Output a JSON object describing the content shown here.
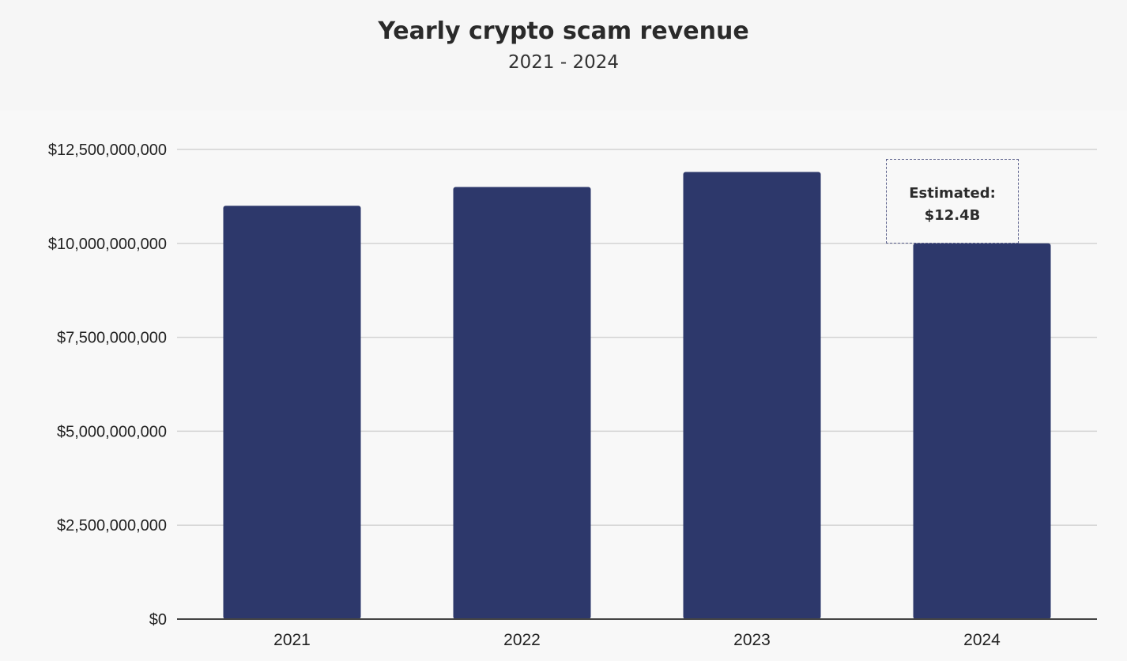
{
  "chart_data": {
    "type": "bar",
    "title": "Yearly crypto scam revenue",
    "subtitle": "2021 - 2024",
    "categories": [
      "2021",
      "2022",
      "2023",
      "2024"
    ],
    "values": [
      11000000000,
      11500000000,
      11900000000,
      10000000000
    ],
    "xlabel": "",
    "ylabel": "",
    "ylim": [
      0,
      12500000000
    ],
    "yticks": [
      {
        "value": 0,
        "label": "$0"
      },
      {
        "value": 2500000000,
        "label": "$2,500,000,000"
      },
      {
        "value": 5000000000,
        "label": "$5,000,000,000"
      },
      {
        "value": 7500000000,
        "label": "$7,500,000,000"
      },
      {
        "value": 10000000000,
        "label": "$10,000,000,000"
      },
      {
        "value": 12500000000,
        "label": "$12,500,000,000"
      }
    ],
    "grid": true,
    "legend": "none",
    "bar_color": "#2d386b",
    "annotation": {
      "category": "2024",
      "line1": "Estimated:",
      "line2": "$12.4B",
      "value": 12400000000
    }
  }
}
